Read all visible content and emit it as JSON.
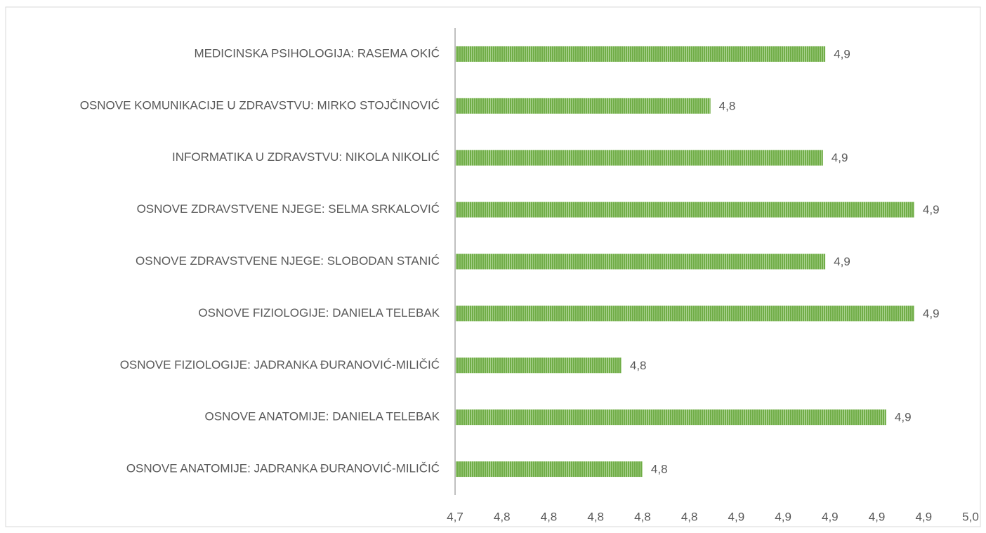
{
  "chart_data": {
    "type": "bar",
    "orientation": "horizontal",
    "categories": [
      "MEDICINSKA PSIHOLOGIJA: RASEMA OKIĆ",
      "OSNOVE KOMUNIKACIJE U ZDRAVSTVU: MIRKO STOJČINOVIĆ",
      "INFORMATIKA U ZDRAVSTVU: NIKOLA NIKOLIĆ",
      "OSNOVE ZDRAVSTVENE NJEGE: SELMA SRKALOVIĆ",
      "OSNOVE ZDRAVSTVENE NJEGE: SLOBODAN STANIĆ",
      "OSNOVE FIZIOLOGIJE: DANIELA TELEBAK",
      "OSNOVE FIZIOLOGIJE: JADRANKA ĐURANOVIĆ-MILIČIĆ",
      "OSNOVE ANATOMIJE: DANIELA TELEBAK",
      "OSNOVE ANATOMIJE: JADRANKA ĐURANOVIĆ-MILIČIĆ"
    ],
    "values": [
      4.898,
      4.849,
      4.897,
      4.936,
      4.898,
      4.936,
      4.811,
      4.924,
      4.82
    ],
    "value_labels": [
      "4,9",
      "4,8",
      "4,9",
      "4,9",
      "4,9",
      "4,9",
      "4,8",
      "4,9",
      "4,8"
    ],
    "color": "#70ad47",
    "xlim": [
      4.74,
      4.96
    ],
    "xticks": [
      {
        "value": 4.74,
        "label": "4,7"
      },
      {
        "value": 4.76,
        "label": "4,8"
      },
      {
        "value": 4.78,
        "label": "4,8"
      },
      {
        "value": 4.8,
        "label": "4,8"
      },
      {
        "value": 4.82,
        "label": "4,8"
      },
      {
        "value": 4.84,
        "label": "4,8"
      },
      {
        "value": 4.86,
        "label": "4,9"
      },
      {
        "value": 4.88,
        "label": "4,9"
      },
      {
        "value": 4.9,
        "label": "4,9"
      },
      {
        "value": 4.92,
        "label": "4,9"
      },
      {
        "value": 4.94,
        "label": "4,9"
      },
      {
        "value": 4.96,
        "label": "5,0"
      }
    ],
    "grid": false
  }
}
